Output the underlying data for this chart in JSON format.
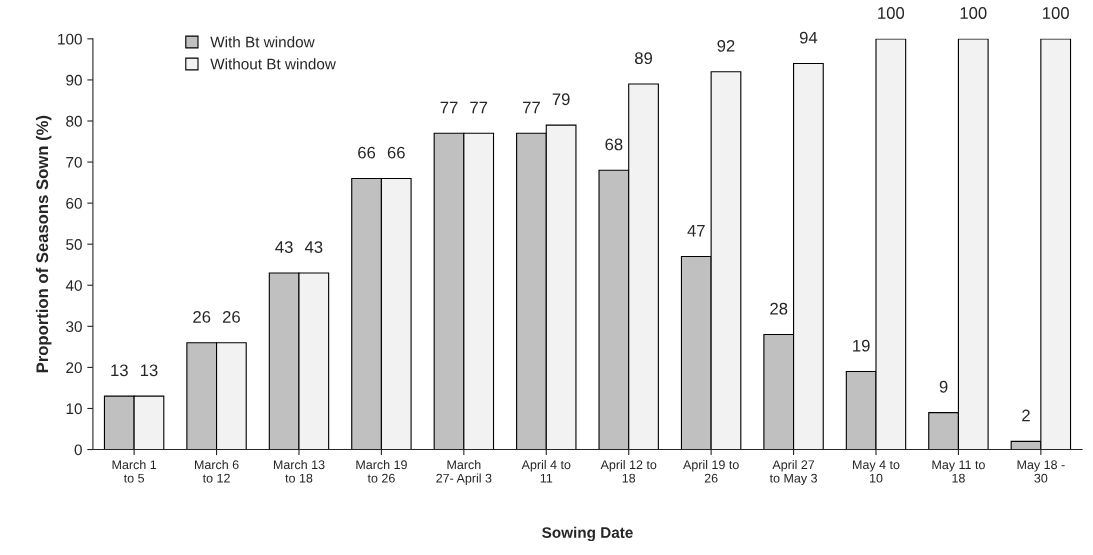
{
  "chart_data": {
    "type": "bar",
    "xlabel": "Sowing Date",
    "ylabel": "Proportion of Seasons Sown (%)",
    "categories": [
      "March 1\nto 5",
      "March 6\nto 12",
      "March 13\nto 18",
      "March 19\nto 26",
      "March\n27- April 3",
      "April 4 to\n11",
      "April 12 to\n18",
      "April 19 to\n26",
      "April 27\nto May 3",
      "May 4 to\n10",
      "May 11 to\n18",
      "May 18 -\n30"
    ],
    "series": [
      {
        "name": "With Bt window",
        "color": "#c0c0c0",
        "values": [
          13,
          26,
          43,
          66,
          77,
          77,
          68,
          47,
          28,
          19,
          9,
          2
        ]
      },
      {
        "name": "Without Bt window",
        "color": "#f2f2f2",
        "values": [
          13,
          26,
          43,
          66,
          77,
          79,
          89,
          92,
          94,
          100,
          100,
          100
        ]
      }
    ],
    "ylim": [
      0,
      100
    ],
    "yticks": [
      0,
      10,
      20,
      30,
      40,
      50,
      60,
      70,
      80,
      90,
      100
    ],
    "data_labels": true,
    "legend": "top left",
    "grid": false
  }
}
